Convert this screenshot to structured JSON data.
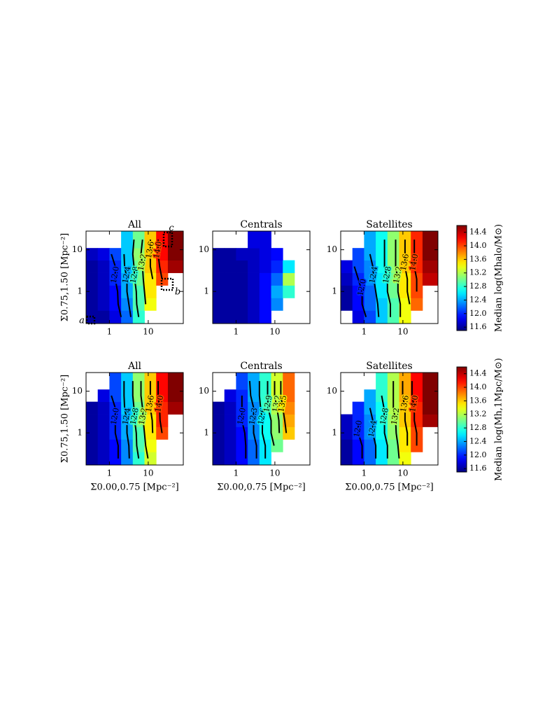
{
  "chart_data": [
    {
      "type": "heatmap",
      "title": "All",
      "ylabel": "Σ0.75,1.50 [Mpc⁻²]",
      "xlim": [
        0.25,
        80
      ],
      "ylim": [
        0.17,
        28
      ],
      "xticks": [
        1,
        10
      ],
      "yticks": [
        1,
        10
      ],
      "log": true,
      "x_edges": [
        0.25,
        0.5,
        1,
        2,
        4,
        8,
        16,
        32,
        80
      ],
      "y_edges": [
        0.17,
        0.35,
        0.7,
        1.4,
        2.8,
        5.6,
        11,
        28
      ],
      "z": [
        [
          11.6,
          11.6,
          11.8,
          12.2,
          12.8,
          null,
          null,
          null
        ],
        [
          11.6,
          11.7,
          11.9,
          12.3,
          12.9,
          13.4,
          null,
          null
        ],
        [
          11.6,
          11.7,
          11.9,
          12.4,
          12.9,
          13.5,
          null,
          null
        ],
        [
          11.6,
          11.7,
          12.0,
          12.4,
          13.0,
          13.5,
          14.0,
          null
        ],
        [
          11.6,
          11.7,
          12.0,
          12.5,
          13.0,
          13.6,
          14.1,
          14.5
        ],
        [
          11.7,
          11.8,
          12.1,
          12.5,
          13.1,
          13.6,
          14.2,
          14.6
        ],
        [
          null,
          null,
          null,
          12.5,
          13.0,
          13.6,
          14.2,
          14.6
        ]
      ],
      "contours": [
        {
          "value": 12,
          "label": "12.0"
        },
        12.4,
        12.8,
        13.2,
        13.6,
        {
          "value": 14,
          "label": "14.0"
        }
      ],
      "annotations": [
        "a",
        "b",
        "c"
      ]
    },
    {
      "type": "heatmap",
      "title": "Centrals",
      "xlim": [
        0.25,
        80
      ],
      "ylim": [
        0.17,
        28
      ],
      "xticks": [
        1,
        10
      ],
      "yticks": [
        1,
        10
      ],
      "log": true,
      "x_edges": [
        0.25,
        0.5,
        1,
        2,
        4,
        8,
        16,
        32,
        80
      ],
      "y_edges": [
        0.17,
        0.35,
        0.7,
        1.4,
        2.8,
        5.6,
        11,
        28
      ],
      "z": [
        [
          11.6,
          11.6,
          11.6,
          11.7,
          11.9,
          null,
          null,
          null
        ],
        [
          11.6,
          11.6,
          11.6,
          11.7,
          11.9,
          12.3,
          null,
          null
        ],
        [
          11.6,
          11.6,
          11.6,
          11.7,
          11.9,
          12.4,
          12.8,
          null
        ],
        [
          11.6,
          11.6,
          11.6,
          11.7,
          11.9,
          12.2,
          13.2,
          null
        ],
        [
          11.6,
          11.6,
          11.6,
          11.7,
          11.8,
          12.0,
          12.6,
          null
        ],
        [
          11.6,
          11.6,
          11.7,
          11.7,
          11.8,
          11.9,
          null,
          null
        ],
        [
          null,
          null,
          null,
          11.8,
          11.8,
          null,
          null,
          null
        ]
      ],
      "contours": []
    },
    {
      "type": "heatmap",
      "title": "Satellites",
      "xlim": [
        0.25,
        80
      ],
      "ylim": [
        0.17,
        28
      ],
      "xticks": [
        1,
        10
      ],
      "yticks": [
        1,
        10
      ],
      "log": true,
      "x_edges": [
        0.25,
        0.5,
        1,
        2,
        4,
        8,
        16,
        32,
        80
      ],
      "y_edges": [
        0.17,
        0.35,
        0.7,
        1.4,
        2.8,
        5.6,
        11,
        28
      ],
      "z": [
        [
          null,
          11.8,
          12.1,
          12.5,
          12.9,
          13.4,
          null,
          null
        ],
        [
          11.6,
          11.9,
          12.2,
          12.5,
          12.9,
          13.4,
          13.9,
          null
        ],
        [
          11.6,
          11.9,
          12.2,
          12.6,
          13.0,
          13.5,
          14.0,
          null
        ],
        [
          11.7,
          12.0,
          12.3,
          12.6,
          13.0,
          13.5,
          14.0,
          14.4
        ],
        [
          11.8,
          12.1,
          12.3,
          12.7,
          13.1,
          13.6,
          14.1,
          14.5
        ],
        [
          null,
          12.1,
          12.4,
          12.7,
          13.1,
          13.6,
          14.1,
          14.6
        ],
        [
          null,
          null,
          12.4,
          12.7,
          13.1,
          13.6,
          14.1,
          14.6
        ]
      ],
      "contours": [
        {
          "value": 12,
          "label": "12.0"
        },
        12.4,
        12.8,
        13.2,
        13.6,
        {
          "value": 14,
          "label": "14.0"
        }
      ]
    },
    {
      "type": "heatmap",
      "title": "All",
      "xlabel": "Σ0.00,0.75 [Mpc⁻²]",
      "ylabel": "Σ0.75,1.50 [Mpc⁻²]",
      "xlim": [
        0.25,
        80
      ],
      "ylim": [
        0.17,
        28
      ],
      "xticks": [
        1,
        10
      ],
      "yticks": [
        1,
        10
      ],
      "log": true,
      "x_edges": [
        0.25,
        0.5,
        1,
        2,
        4,
        8,
        16,
        32,
        80
      ],
      "y_edges": [
        0.17,
        0.35,
        0.7,
        1.4,
        2.8,
        5.6,
        11,
        28
      ],
      "z": [
        [
          11.6,
          11.7,
          11.9,
          12.3,
          12.8,
          13.3,
          null,
          null
        ],
        [
          11.6,
          11.7,
          11.9,
          12.3,
          12.9,
          13.4,
          null,
          null
        ],
        [
          11.6,
          11.7,
          12.0,
          12.4,
          12.9,
          13.5,
          14.0,
          null
        ],
        [
          11.6,
          11.7,
          12.0,
          12.4,
          13.0,
          13.5,
          14.1,
          null
        ],
        [
          11.6,
          11.7,
          12.0,
          12.5,
          13.0,
          13.6,
          14.1,
          14.5
        ],
        [
          null,
          11.8,
          12.1,
          12.5,
          13.1,
          13.6,
          14.2,
          14.6
        ],
        [
          null,
          null,
          12.1,
          12.5,
          13.1,
          13.6,
          14.2,
          14.6
        ]
      ],
      "contours": [
        {
          "value": 12,
          "label": "12.0"
        },
        12.4,
        12.8,
        13.2,
        13.6,
        {
          "value": 14,
          "label": "14.0"
        }
      ]
    },
    {
      "type": "heatmap",
      "title": "Centrals",
      "xlabel": "Σ0.00,0.75 [Mpc⁻²]",
      "xlim": [
        0.25,
        80
      ],
      "ylim": [
        0.17,
        28
      ],
      "xticks": [
        1,
        10
      ],
      "yticks": [
        1,
        10
      ],
      "log": true,
      "x_edges": [
        0.25,
        0.5,
        1,
        2,
        4,
        8,
        16,
        32,
        80
      ],
      "y_edges": [
        0.17,
        0.35,
        0.7,
        1.4,
        2.8,
        5.6,
        11,
        28
      ],
      "z": [
        [
          11.6,
          11.7,
          11.9,
          12.2,
          12.6,
          null,
          null,
          null
        ],
        [
          11.6,
          11.7,
          11.9,
          12.2,
          12.6,
          13.0,
          null,
          null
        ],
        [
          11.6,
          11.7,
          11.9,
          12.3,
          12.7,
          13.1,
          13.6,
          null
        ],
        [
          11.6,
          11.7,
          12.0,
          12.3,
          12.7,
          13.1,
          13.7,
          null
        ],
        [
          11.6,
          11.7,
          12.0,
          12.3,
          12.8,
          13.2,
          13.8,
          null
        ],
        [
          null,
          11.8,
          12.0,
          12.4,
          12.8,
          13.3,
          13.9,
          null
        ],
        [
          null,
          null,
          12.1,
          12.4,
          12.8,
          13.3,
          13.9,
          null
        ]
      ],
      "contours": [
        {
          "value": 12,
          "label": "12.0"
        },
        12.3,
        12.6,
        12.9,
        13.2,
        13.5
      ]
    },
    {
      "type": "heatmap",
      "title": "Satellites",
      "xlabel": "Σ0.00,0.75 [Mpc⁻²]",
      "xlim": [
        0.25,
        80
      ],
      "ylim": [
        0.17,
        28
      ],
      "xticks": [
        1,
        10
      ],
      "yticks": [
        1,
        10
      ],
      "log": true,
      "x_edges": [
        0.25,
        0.5,
        1,
        2,
        4,
        8,
        16,
        32,
        80
      ],
      "y_edges": [
        0.17,
        0.35,
        0.7,
        1.4,
        2.8,
        5.6,
        11,
        28
      ],
      "z": [
        [
          11.6,
          11.9,
          12.2,
          12.6,
          13.0,
          13.4,
          null,
          null
        ],
        [
          11.6,
          11.9,
          12.2,
          12.6,
          13.0,
          13.5,
          14.0,
          null
        ],
        [
          11.7,
          12.0,
          12.3,
          12.7,
          13.1,
          13.5,
          14.0,
          null
        ],
        [
          11.7,
          12.0,
          12.3,
          12.7,
          13.1,
          13.6,
          14.1,
          14.5
        ],
        [
          null,
          12.0,
          12.4,
          12.7,
          13.2,
          13.6,
          14.1,
          14.6
        ],
        [
          null,
          null,
          12.4,
          12.8,
          13.2,
          13.7,
          14.2,
          14.6
        ],
        [
          null,
          null,
          null,
          12.8,
          13.2,
          13.7,
          14.2,
          14.6
        ]
      ],
      "contours": [
        {
          "value": 12,
          "label": "12.0"
        },
        12.4,
        12.8,
        13.2,
        13.6,
        {
          "value": 14,
          "label": "14.0"
        }
      ]
    },
    {
      "type": "colorbar",
      "label": "Median log(Mhalo/M⊙)",
      "zlim": [
        11.5,
        14.6
      ],
      "zticks": [
        11.6,
        {
          "value": 12,
          "label": "12.0"
        },
        12.4,
        12.8,
        13.2,
        13.6,
        {
          "value": 14,
          "label": "14.0"
        },
        14.4
      ]
    },
    {
      "type": "colorbar",
      "label": "Median log(Mh,1Mpc/M⊙)",
      "zlim": [
        11.5,
        14.6
      ],
      "zticks": [
        11.6,
        {
          "value": 12,
          "label": "12.0"
        },
        12.4,
        12.8,
        13.2,
        13.6,
        {
          "value": 14,
          "label": "14.0"
        },
        14.4
      ]
    }
  ]
}
